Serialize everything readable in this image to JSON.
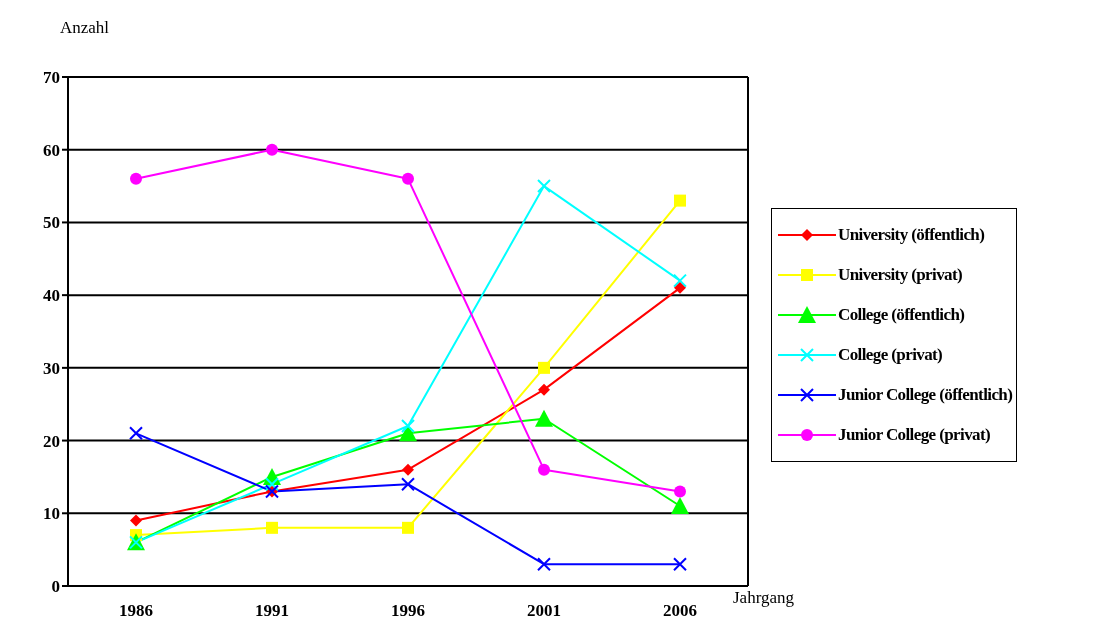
{
  "chart_data": {
    "type": "line",
    "xlabel": "Jahrgang",
    "ylabel": "Anzahl",
    "categories": [
      "1986",
      "1991",
      "1996",
      "2001",
      "2006"
    ],
    "series": [
      {
        "name": "University (öffentlich)",
        "color": "#ff0000",
        "marker": "diamond",
        "values": [
          9,
          13,
          16,
          27,
          41
        ]
      },
      {
        "name": "University (privat)",
        "color": "#ffff00",
        "marker": "square",
        "values": [
          7,
          8,
          8,
          30,
          53
        ]
      },
      {
        "name": "College (öffentlich)",
        "color": "#00ff00",
        "marker": "triangle",
        "values": [
          6,
          15,
          21,
          23,
          11
        ]
      },
      {
        "name": "College (privat)",
        "color": "#00ffff",
        "marker": "cross",
        "values": [
          6,
          14,
          22,
          55,
          42
        ]
      },
      {
        "name": "Junior College (öffentlich)",
        "color": "#0000ff",
        "marker": "cross",
        "values": [
          21,
          13,
          14,
          3,
          3
        ]
      },
      {
        "name": "Junior College (privat)",
        "color": "#ff00ff",
        "marker": "circle",
        "values": [
          56,
          60,
          56,
          16,
          13
        ]
      }
    ],
    "ylim": [
      0,
      70
    ],
    "yticks": [
      0,
      10,
      20,
      30,
      40,
      50,
      60,
      70
    ],
    "grid": "y",
    "legend": "right"
  }
}
